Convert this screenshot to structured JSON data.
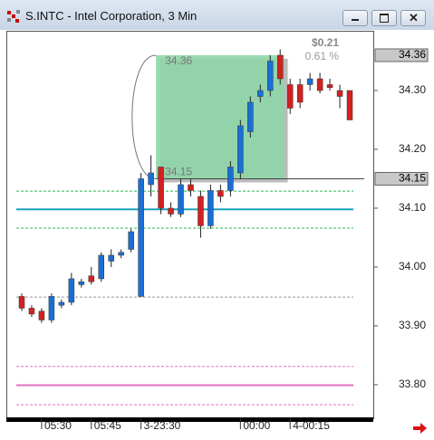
{
  "window": {
    "title": "S.INTC - Intel Corporation, 3 Min"
  },
  "chart_data": {
    "type": "candlestick",
    "categories": [
      null,
      null,
      "05:30",
      null,
      null,
      null,
      null,
      "05:45",
      null,
      null,
      null,
      null,
      "3-23:30",
      null,
      null,
      null,
      null,
      null,
      null,
      null,
      null,
      null,
      "00:00",
      null,
      null,
      null,
      null,
      "4-00:15",
      null,
      null,
      null,
      null,
      null,
      null
    ],
    "open": [
      33.95,
      33.93,
      33.925,
      33.91,
      33.935,
      33.94,
      33.97,
      33.985,
      33.98,
      34.01,
      34.02,
      34.03,
      33.95,
      34.14,
      34.17,
      34.1,
      34.09,
      34.14,
      34.12,
      34.07,
      34.13,
      34.13,
      34.16,
      34.23,
      34.29,
      34.3,
      34.36,
      34.31,
      34.31,
      34.31,
      34.32,
      34.31,
      34.3,
      34.3
    ],
    "high": [
      33.955,
      33.935,
      33.93,
      33.955,
      33.945,
      33.99,
      33.98,
      34.0,
      34.025,
      34.03,
      34.03,
      34.065,
      34.16,
      34.19,
      34.17,
      34.11,
      34.15,
      34.15,
      34.13,
      34.14,
      34.14,
      34.18,
      34.25,
      34.29,
      34.31,
      34.36,
      34.37,
      34.32,
      34.32,
      34.33,
      34.33,
      34.32,
      34.31,
      34.3
    ],
    "low": [
      33.925,
      33.915,
      33.905,
      33.905,
      33.93,
      33.935,
      33.965,
      33.97,
      33.975,
      34.0,
      34.015,
      34.025,
      33.95,
      34.12,
      34.09,
      34.085,
      34.085,
      34.12,
      34.05,
      34.065,
      34.11,
      34.12,
      34.15,
      34.22,
      34.28,
      34.29,
      34.31,
      34.26,
      34.27,
      34.3,
      34.295,
      34.3,
      34.27,
      34.25
    ],
    "close": [
      33.93,
      33.92,
      33.91,
      33.95,
      33.94,
      33.98,
      33.975,
      33.975,
      34.02,
      34.02,
      34.025,
      34.06,
      34.15,
      34.16,
      34.1,
      34.09,
      34.14,
      34.13,
      34.07,
      34.13,
      34.12,
      34.17,
      34.24,
      34.28,
      34.3,
      34.35,
      34.32,
      34.27,
      34.28,
      34.32,
      34.3,
      34.305,
      34.29,
      34.25
    ],
    "up_color": "#1a6fd6",
    "down_color": "#d42020",
    "ylim": [
      33.746,
      34.4
    ],
    "yticks": [
      {
        "value": 33.8,
        "label": "33.80"
      },
      {
        "value": 33.9,
        "label": "33.90"
      },
      {
        "value": 34,
        "label": "34.00"
      },
      {
        "value": 34.1,
        "label": "34.10"
      },
      {
        "value": 34.2,
        "label": "34.20"
      },
      {
        "value": 34.3,
        "label": "34.30"
      }
    ],
    "price_markers": [
      {
        "value": 34.36,
        "label": "34.36"
      },
      {
        "value": 34.15,
        "label": "34.15"
      }
    ],
    "levels": [
      {
        "value": 34.129,
        "color": "#2db84d",
        "style": "dashed"
      },
      {
        "value": 34.098,
        "color": "#1aa0b8",
        "style": "solid"
      },
      {
        "value": 34.066,
        "color": "#2db84d",
        "style": "dashed"
      },
      {
        "value": 33.949,
        "color": "#999999",
        "style": "dashed"
      },
      {
        "value": 33.831,
        "color": "#e070c0",
        "style": "dashed"
      },
      {
        "value": 33.799,
        "color": "#e070c0",
        "style": "solid"
      },
      {
        "value": 33.766,
        "color": "#e070c0",
        "style": "dashed"
      }
    ],
    "measure": {
      "top": {
        "value": 34.36,
        "label": "34.36"
      },
      "bottom": {
        "value": 34.15,
        "label": "34.15"
      },
      "change": {
        "value": 0.21,
        "label": "$0.21"
      },
      "percent": {
        "value": 0.61,
        "label": "0.61 %"
      },
      "color": "#8fd6a8"
    }
  }
}
